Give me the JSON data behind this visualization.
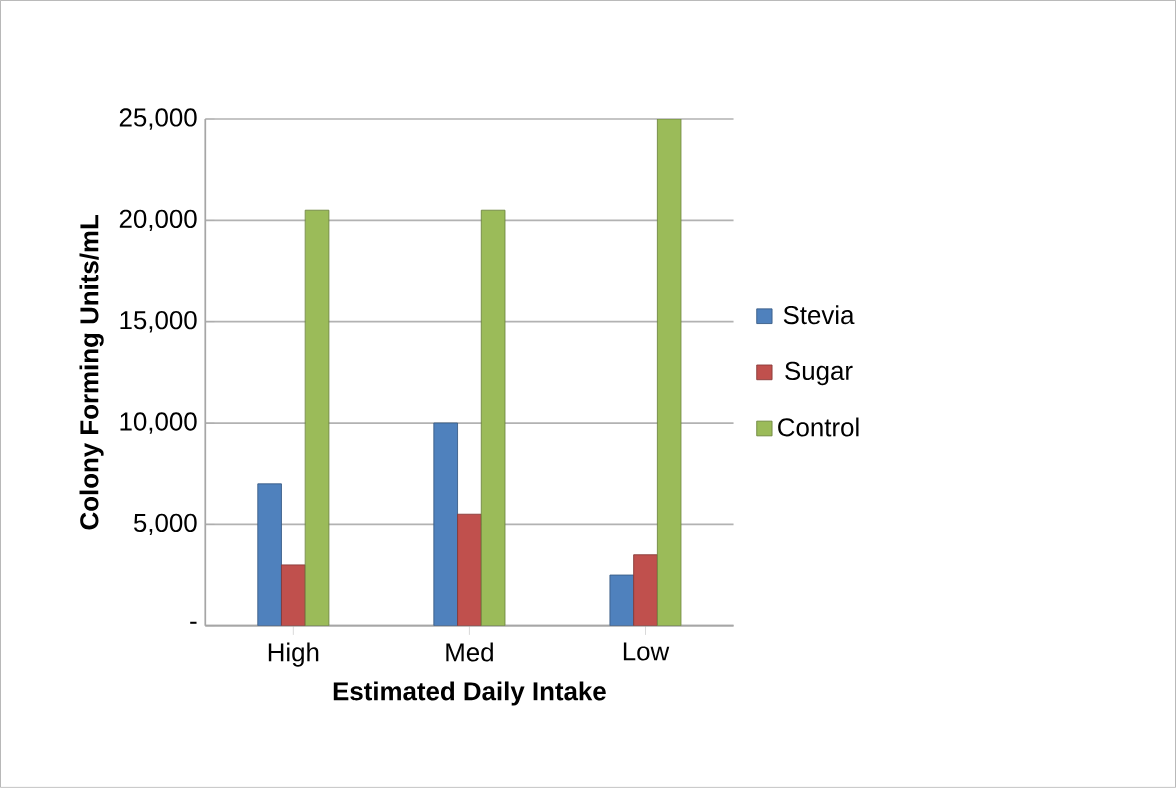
{
  "chart_data": {
    "type": "bar",
    "xlabel": "Estimated Daily Intake",
    "ylabel": "Colony Forming Units/mL",
    "categories": [
      "High",
      "Med",
      "Low"
    ],
    "series": [
      {
        "name": "Stevia",
        "color": "#4f81bd",
        "values": [
          7000,
          10000,
          2500
        ]
      },
      {
        "name": "Sugar",
        "color": "#c0504d",
        "values": [
          3000,
          5500,
          3500
        ]
      },
      {
        "name": "Control",
        "color": "#9bbb59",
        "values": [
          20500,
          20500,
          25000
        ]
      }
    ],
    "ylim": [
      0,
      25000
    ],
    "yticks": [
      {
        "value": 0,
        "label": "-"
      },
      {
        "value": 5000,
        "label": "5,000"
      },
      {
        "value": 10000,
        "label": "10,000"
      },
      {
        "value": 15000,
        "label": "15,000"
      },
      {
        "value": 20000,
        "label": "20,000"
      },
      {
        "value": 25000,
        "label": "25,000"
      }
    ],
    "grid": "y",
    "legend": "right"
  }
}
